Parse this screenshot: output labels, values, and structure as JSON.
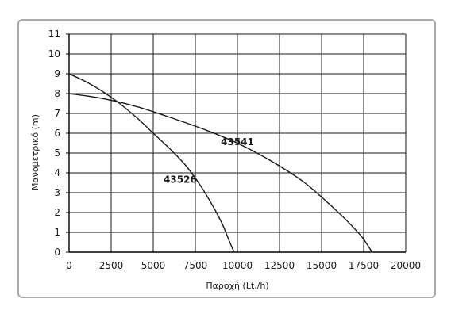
{
  "chart_data": {
    "type": "line",
    "xlabel": "Παροχή (Lt./h)",
    "ylabel": "Μανομετρικό (m)",
    "xlim": [
      0,
      20000
    ],
    "ylim": [
      0,
      11
    ],
    "x_ticks": [
      0,
      2500,
      5000,
      7500,
      10000,
      12500,
      15000,
      17500,
      20000
    ],
    "x_tick_labels": [
      "0",
      "2500",
      "5000",
      "7500",
      "10000",
      "12500",
      "15000",
      "17500",
      "20000"
    ],
    "y_ticks": [
      0,
      1,
      2,
      3,
      4,
      5,
      6,
      7,
      8,
      9,
      10,
      11
    ],
    "y_tick_labels": [
      "0",
      "1",
      "2",
      "3",
      "4",
      "5",
      "6",
      "7",
      "8",
      "9",
      "10",
      "11"
    ],
    "grid": true,
    "series": [
      {
        "name": "43526",
        "color": "#1a1a1a",
        "x": [
          0,
          1000,
          2000,
          3000,
          4000,
          5000,
          6000,
          7000,
          8000,
          9000,
          9500,
          9800
        ],
        "y": [
          9.0,
          8.6,
          8.1,
          7.5,
          6.8,
          6.0,
          5.2,
          4.3,
          3.1,
          1.6,
          0.6,
          0.0
        ]
      },
      {
        "name": "43541",
        "color": "#1a1a1a",
        "x": [
          0,
          2000,
          4000,
          6000,
          8000,
          10000,
          12000,
          14000,
          16000,
          17000,
          17500,
          18000
        ],
        "y": [
          8.0,
          7.75,
          7.35,
          6.8,
          6.2,
          5.5,
          4.6,
          3.5,
          2.0,
          1.15,
          0.65,
          0.0
        ]
      }
    ]
  }
}
